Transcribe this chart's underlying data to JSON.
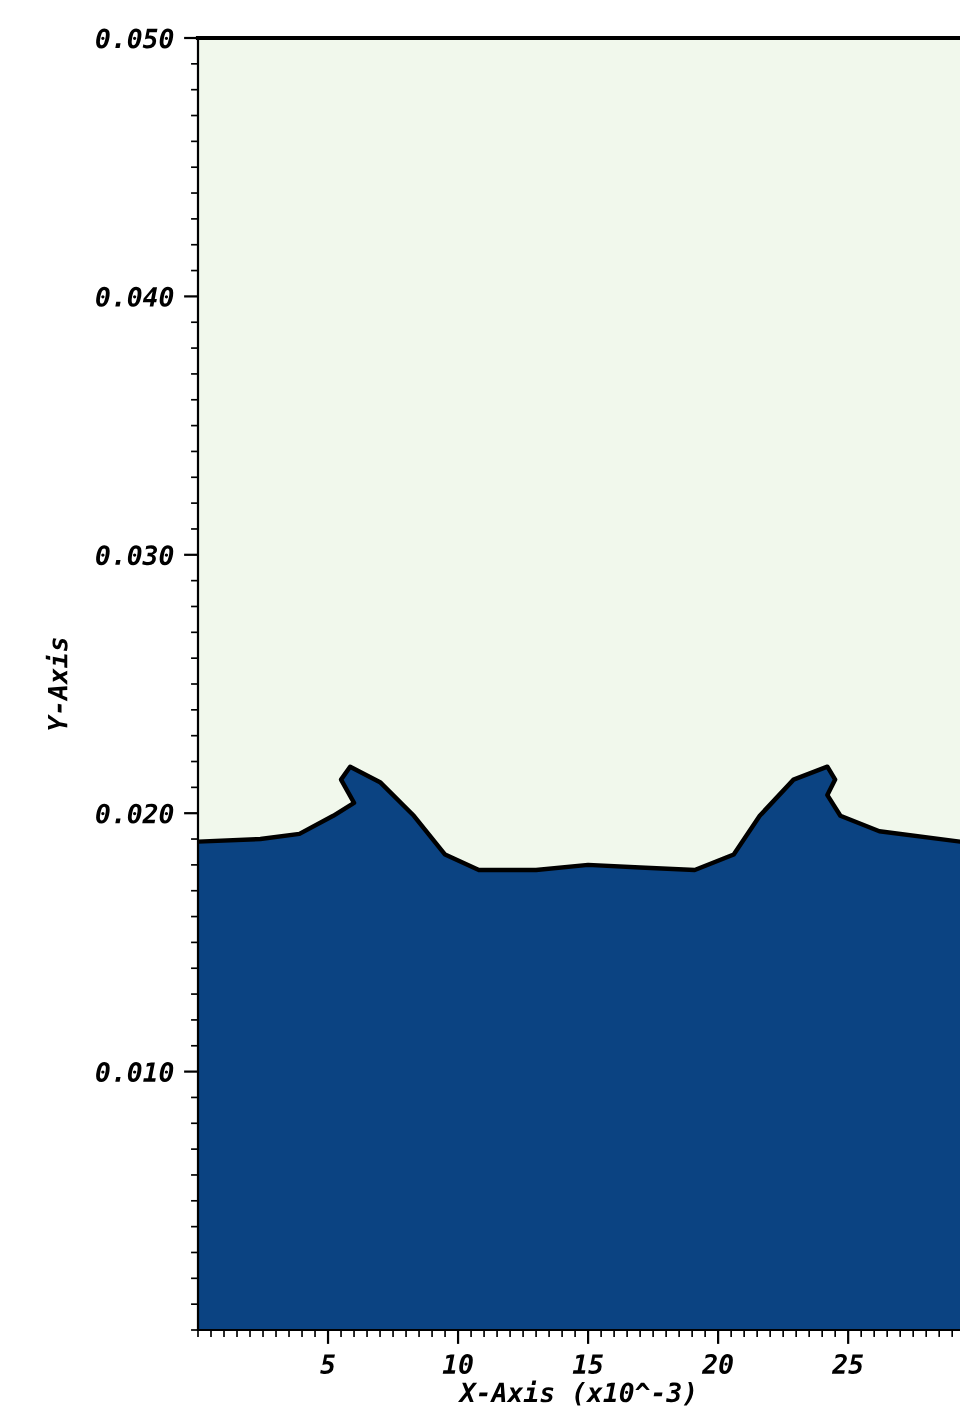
{
  "chart_data": {
    "type": "area",
    "xlabel": "X-Axis (x10^-3)",
    "ylabel": "Y-Axis",
    "xlim": [
      0,
      29.3
    ],
    "ylim": [
      0,
      0.05
    ],
    "xticks": [
      5,
      10,
      15,
      20,
      25
    ],
    "yticks": [
      {
        "value": 0.01,
        "label": "0.010"
      },
      {
        "value": 0.02,
        "label": "0.020"
      },
      {
        "value": 0.03,
        "label": "0.030"
      },
      {
        "value": 0.04,
        "label": "0.040"
      },
      {
        "value": 0.05,
        "label": "0.050"
      }
    ],
    "grid": false,
    "legend": false,
    "series": [
      {
        "color": "#0b4382",
        "x": [
          0,
          2.4,
          3.9,
          5.2,
          6.0,
          5.5,
          5.85,
          7.0,
          8.3,
          9.5,
          10.8,
          13,
          15,
          17,
          19.1,
          20.6,
          21.6,
          22.9,
          24.2,
          24.5,
          24.2,
          24.7,
          26.2,
          29.3
        ],
        "values": [
          0.0189,
          0.019,
          0.0192,
          0.0199,
          0.0204,
          0.0213,
          0.0218,
          0.0212,
          0.0199,
          0.0184,
          0.0178,
          0.0178,
          0.018,
          0.0179,
          0.0178,
          0.0184,
          0.0199,
          0.0213,
          0.0218,
          0.0213,
          0.0207,
          0.0199,
          0.0193,
          0.0189
        ]
      }
    ]
  }
}
